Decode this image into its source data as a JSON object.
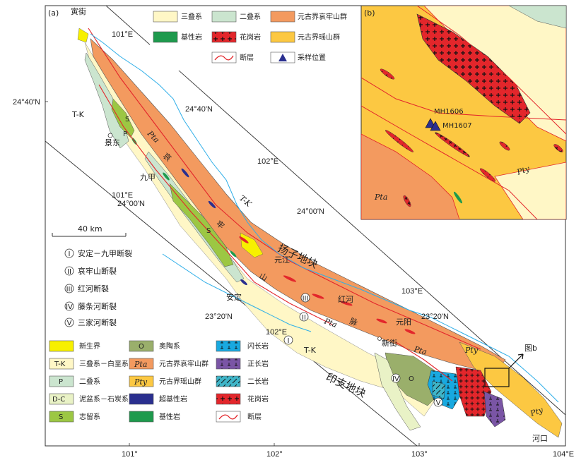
{
  "panel_a": {
    "label": "(a)",
    "place_names": {
      "yinjie": "寅街",
      "jingdong": "景东",
      "jiujia": "九甲",
      "yuanjiang": "元江",
      "anding": "安定",
      "honghe": "红河",
      "xinjie": "新街",
      "yuanyang": "元阳",
      "hekou": "河口"
    },
    "blocks": {
      "yangtze": "扬子地块",
      "indochina": "印支地块"
    },
    "ailaoshan_chars": [
      "哀",
      "牢",
      "山",
      "脉"
    ],
    "unit_labels": {
      "tk": "T-K",
      "pta": "Pta",
      "pty": "Pty",
      "p": "P",
      "s": "S",
      "o": "O"
    },
    "coords": {
      "lon_101_top": "101°E",
      "lon_102_top": "102°E",
      "lon_103_top": "103°E",
      "lon_101_mid": "101°E",
      "lon_102_mid": "102°E",
      "lat_2440_left": "24°40'N",
      "lat_2440_mid": "24°40'N",
      "lat_2400_left": "24°00'N",
      "lat_2400_mid": "24°00'N",
      "lat_2320_left": "23°20'N",
      "lat_2320_right": "23°20'N",
      "axis_101": "101°",
      "axis_102": "102°",
      "axis_103": "103°",
      "axis_104": "104°E"
    },
    "scale_bar": "40 km",
    "inset_pointer": "图b",
    "fault_markers": {
      "f1": "I",
      "f2": "II",
      "f3": "III",
      "f4": "IV",
      "f5": "V"
    },
    "fault_legend": [
      {
        "numeral": "I",
        "name": "安定－九甲断裂"
      },
      {
        "numeral": "II",
        "name": "哀牢山断裂"
      },
      {
        "numeral": "III",
        "name": "红河断裂"
      },
      {
        "numeral": "IV",
        "name": "藤条河断裂"
      },
      {
        "numeral": "V",
        "name": "三家河断裂"
      }
    ],
    "legend": [
      {
        "code": "",
        "name": "新生界",
        "color": "#f7f000"
      },
      {
        "code": "O",
        "name": "奥陶系",
        "color": "#9aaf6b"
      },
      {
        "code": "",
        "name": "闪长岩",
        "color": "#18a9e0"
      },
      {
        "code": "T-K",
        "name": "三叠系－白垩系",
        "color": "#fff7c6"
      },
      {
        "code": "Pta",
        "name": "元古界哀牢山群",
        "color": "#f39a5f"
      },
      {
        "code": "",
        "name": "正长岩",
        "color": "#7a55a5"
      },
      {
        "code": "P",
        "name": "二叠系",
        "color": "#cbe5cf"
      },
      {
        "code": "Pty",
        "name": "元古界瑶山群",
        "color": "#fcc842"
      },
      {
        "code": "",
        "name": "二长岩",
        "color": "#3fb5c8"
      },
      {
        "code": "D-C",
        "name": "泥盆系－石炭系",
        "color": "#e9f2c6"
      },
      {
        "code": "",
        "name": "超基性岩",
        "color": "#2a2f8f"
      },
      {
        "code": "",
        "name": "花岗岩",
        "color": "#e3262b"
      },
      {
        "code": "S",
        "name": "志留系",
        "color": "#9cc743"
      },
      {
        "code": "",
        "name": "基性岩",
        "color": "#1e9a4d"
      },
      {
        "code": "",
        "name": "断层",
        "color": "#e3262b"
      }
    ]
  },
  "top_legend": [
    {
      "name": "三叠系",
      "color": "#fff7c6"
    },
    {
      "name": "二叠系",
      "color": "#cbe5cf"
    },
    {
      "name": "元古界哀牢山群",
      "color": "#f39a5f"
    },
    {
      "name": "基性岩",
      "color": "#1e9a4d"
    },
    {
      "name": "花岗岩",
      "color": "#e3262b"
    },
    {
      "name": "元古界瑶山群",
      "color": "#fcc842"
    },
    {
      "name": "断层",
      "color": "#e3262b"
    },
    {
      "name": "采样位置",
      "color": "#2a2f8f"
    }
  ],
  "panel_b": {
    "label": "(b)",
    "samples": [
      "MH1606",
      "MH1607"
    ],
    "unit_pty": "Pty",
    "unit_pta": "Pta"
  }
}
